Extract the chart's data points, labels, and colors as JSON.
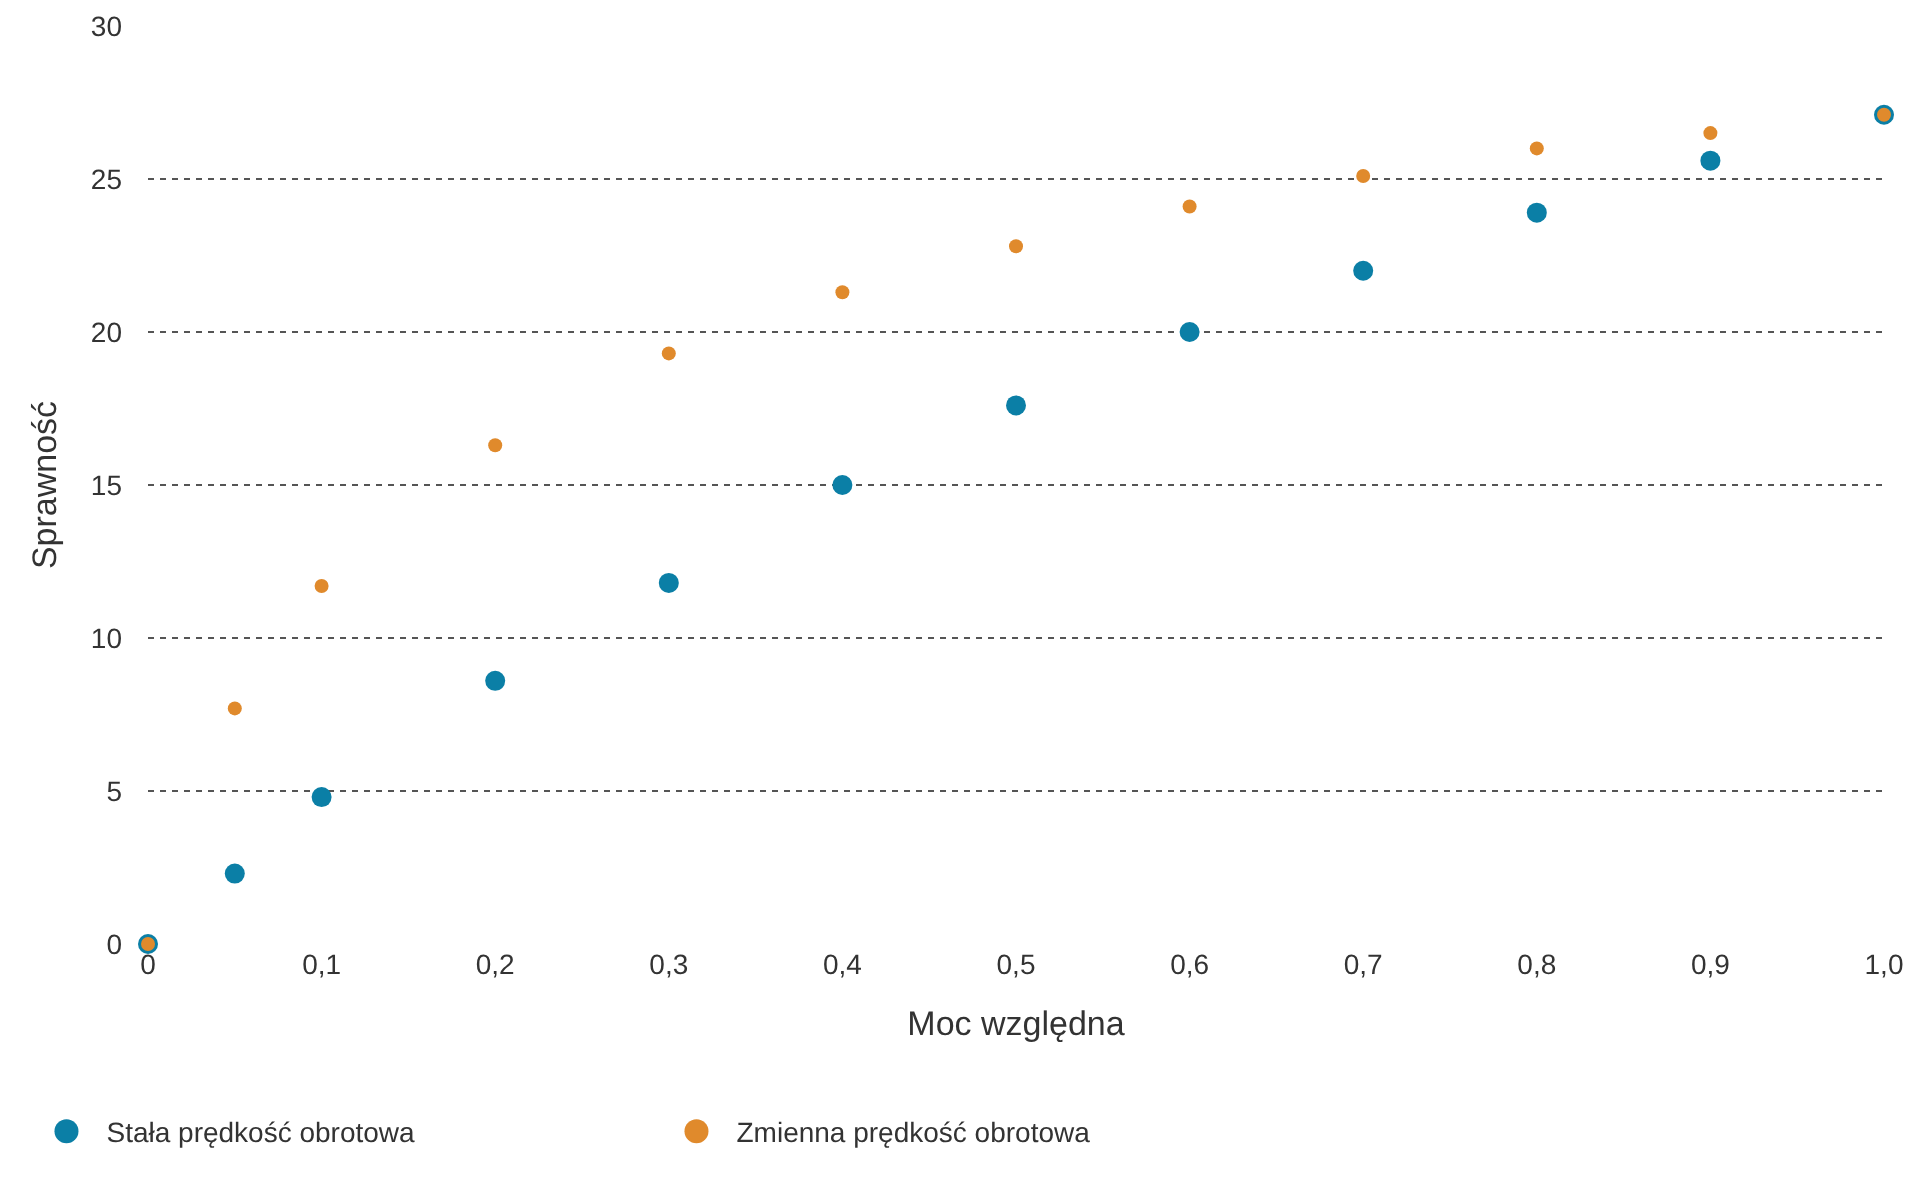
{
  "chart_data": {
    "type": "scatter",
    "xlabel": "Moc względna",
    "ylabel": "Sprawność",
    "x": [
      0,
      0.05,
      0.1,
      0.2,
      0.3,
      0.4,
      0.5,
      0.6,
      0.7,
      0.8,
      0.9,
      1.0
    ],
    "series": [
      {
        "name": "Stała prędkość obrotowa",
        "color": "#0b7fa6",
        "values": [
          0,
          2.3,
          4.8,
          8.6,
          11.8,
          15.0,
          17.6,
          20.0,
          22.0,
          23.9,
          25.6,
          27.1
        ]
      },
      {
        "name": "Zmienna prędkość obrotowa",
        "color": "#e08a2c",
        "values": [
          0,
          7.7,
          11.7,
          16.3,
          19.3,
          21.3,
          22.8,
          24.1,
          25.1,
          26.0,
          26.5,
          27.1
        ]
      }
    ],
    "xlim": [
      0,
      1.0
    ],
    "xticks": [
      0,
      {
        "value": 0.1,
        "label": "0,1"
      },
      {
        "value": 0.2,
        "label": "0,2"
      },
      {
        "value": 0.3,
        "label": "0,3"
      },
      {
        "value": 0.4,
        "label": "0,4"
      },
      {
        "value": 0.5,
        "label": "0,5"
      },
      {
        "value": 0.6,
        "label": "0,6"
      },
      {
        "value": 0.7,
        "label": "0,7"
      },
      {
        "value": 0.8,
        "label": "0,8"
      },
      {
        "value": 0.9,
        "label": "0,9"
      },
      {
        "value": 1.0,
        "label": "1,0"
      }
    ],
    "ylim": [
      0,
      30
    ],
    "yticks": [
      0,
      5,
      10,
      15,
      20,
      25,
      30
    ],
    "grid": "y",
    "legend": "bottom left",
    "marker": "circle"
  }
}
